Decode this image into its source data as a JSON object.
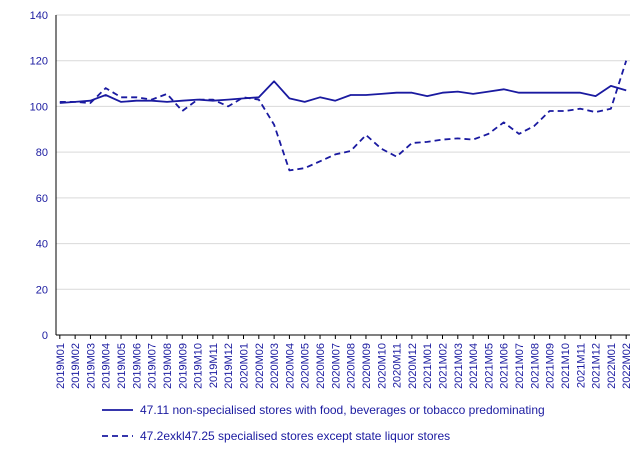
{
  "chart_data": {
    "type": "line",
    "title": "",
    "xlabel": "",
    "ylabel": "",
    "ylim": [
      0,
      140
    ],
    "yticks": [
      0,
      20,
      40,
      60,
      80,
      100,
      120,
      140
    ],
    "grid": "horizontal",
    "legend_position": "bottom",
    "colors": {
      "line": "#1a1aa0",
      "grid": "#d9d9d9",
      "axis": "#000000"
    },
    "categories": [
      "2019M01",
      "2019M02",
      "2019M03",
      "2019M04",
      "2019M05",
      "2019M06",
      "2019M07",
      "2019M08",
      "2019M09",
      "2019M10",
      "2019M11",
      "2019M12",
      "2020M01",
      "2020M02",
      "2020M03",
      "2020M04",
      "2020M05",
      "2020M06",
      "2020M07",
      "2020M08",
      "2020M09",
      "2020M10",
      "2020M11",
      "2020M12",
      "2021M01",
      "2021M02",
      "2021M03",
      "2021M04",
      "2021M05",
      "2021M06",
      "2021M07",
      "2021M08",
      "2021M09",
      "2021M10",
      "2021M11",
      "2021M12",
      "2022M01",
      "2022M02"
    ],
    "series": [
      {
        "name": "47.11 non-specialised stores with food, beverages or tobacco predominating",
        "style": "solid",
        "values": [
          101.5,
          102,
          102.5,
          105,
          102,
          102.5,
          102.5,
          102,
          102.5,
          103,
          102.5,
          103,
          103.5,
          104,
          111,
          103.5,
          102,
          104,
          102.5,
          105,
          105,
          105.5,
          106,
          106,
          104.5,
          106,
          106.5,
          105.5,
          106.5,
          107.5,
          106,
          106,
          106,
          106,
          106,
          104.5,
          109,
          107
        ]
      },
      {
        "name": "47.2exkl47.25 specialised stores except state liquor stores",
        "style": "dashed",
        "values": [
          102,
          102,
          101.5,
          108,
          104,
          104,
          103,
          105.5,
          98,
          103,
          103,
          100,
          104,
          103,
          92,
          72,
          73,
          76,
          79,
          80.5,
          87.5,
          81.5,
          78,
          84,
          84.5,
          85.5,
          86,
          85.5,
          88,
          93,
          88,
          91.5,
          98,
          98,
          99,
          97.5,
          99,
          120
        ]
      }
    ]
  }
}
